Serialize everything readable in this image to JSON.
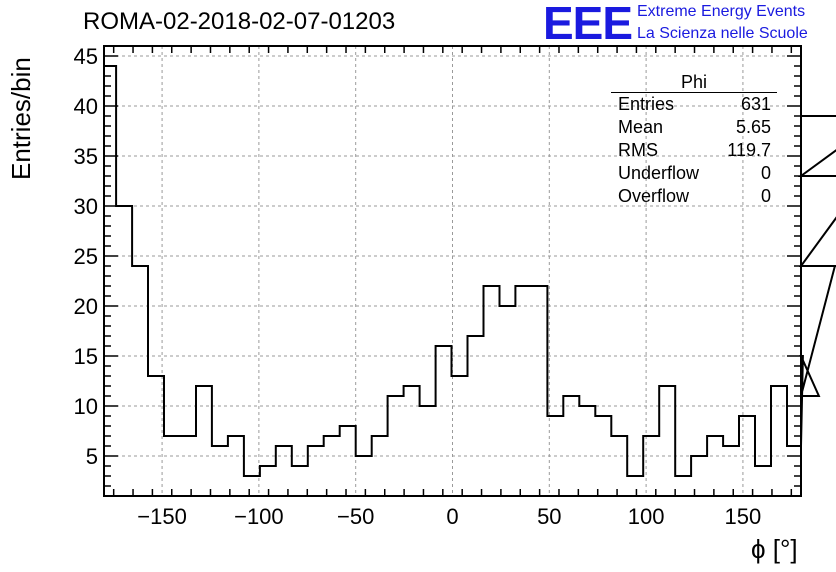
{
  "header": {
    "title": "ROMA-02-2018-02-07-01203",
    "logo_text": "EEE",
    "logo_line1": "Extreme Energy Events",
    "logo_line2": "La Scienza nelle Scuole"
  },
  "stats_box": {
    "name": "Phi",
    "rows": [
      {
        "label": "Entries",
        "value": "631"
      },
      {
        "label": "Mean",
        "value": "5.65"
      },
      {
        "label": "RMS",
        "value": "119.7"
      },
      {
        "label": "Underflow",
        "value": "0"
      },
      {
        "label": "Overflow",
        "value": "0"
      }
    ]
  },
  "chart_data": {
    "type": "bar",
    "title": "ROMA-02-2018-02-07-01203",
    "xlabel": "ϕ [°]",
    "ylabel": "Entries/bin",
    "xlim": [
      -180,
      180
    ],
    "ylim": [
      1,
      46
    ],
    "grid": true,
    "histogram_style": "step",
    "bin_width": 8.25,
    "bin_edges_start": -182,
    "x_ticks": [
      -150,
      -100,
      -50,
      0,
      50,
      100,
      150
    ],
    "x_tick_labels": [
      "−150",
      "−100",
      "−50",
      "0",
      "50",
      "100",
      "150"
    ],
    "y_ticks": [
      5,
      10,
      15,
      20,
      25,
      30,
      35,
      40,
      45
    ],
    "y_tick_labels": [
      "5",
      "10",
      "15",
      "20",
      "25",
      "30",
      "35",
      "40",
      "45"
    ],
    "values": [
      44,
      30,
      24,
      13,
      7,
      7,
      12,
      6,
      7,
      3,
      4,
      6,
      4,
      6,
      7,
      8,
      5,
      7,
      11,
      12,
      10,
      16,
      13,
      17,
      22,
      20,
      22,
      22,
      9,
      11,
      10,
      9,
      7,
      3,
      7,
      12,
      3,
      5,
      7,
      6,
      9,
      4,
      12,
      6,
      15,
      11,
      24,
      24,
      33,
      39
    ]
  },
  "colors": {
    "line": "#000000",
    "grid": "#9a9a9a",
    "logo": "#1a1adf"
  }
}
